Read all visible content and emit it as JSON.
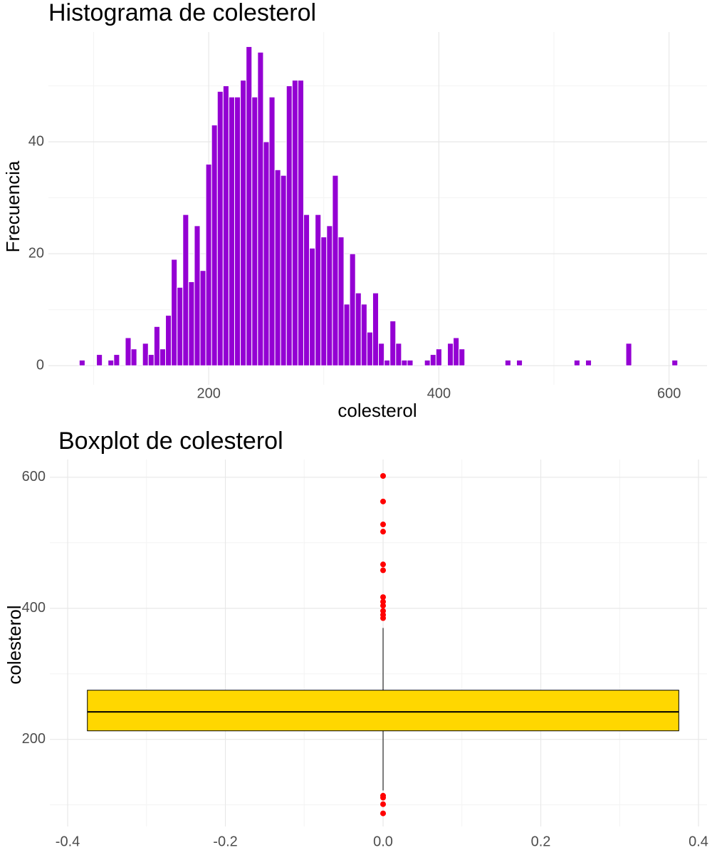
{
  "chart_data": [
    {
      "type": "histogram",
      "title": "Histograma de colesterol",
      "xlabel": "colesterol",
      "ylabel": "Frecuencia",
      "bins": [
        87.5,
        92.5,
        97.5,
        102.5,
        107.5,
        112.5,
        117.5,
        122.5,
        127.5,
        132.5,
        137.5,
        142.5,
        147.5,
        152.5,
        157.5,
        162.5,
        167.5,
        172.5,
        177.5,
        182.5,
        187.5,
        192.5,
        197.5,
        202.5,
        207.5,
        212.5,
        217.5,
        222.5,
        227.5,
        232.5,
        237.5,
        242.5,
        247.5,
        252.5,
        257.5,
        262.5,
        267.5,
        272.5,
        277.5,
        282.5,
        287.5,
        292.5,
        297.5,
        302.5,
        307.5,
        312.5,
        317.5,
        322.5,
        327.5,
        332.5,
        337.5,
        342.5,
        347.5,
        352.5,
        357.5,
        362.5,
        367.5,
        372.5,
        377.5,
        382.5,
        387.5,
        392.5,
        397.5,
        402.5,
        407.5,
        412.5,
        417.5,
        422.5,
        427.5,
        432.5,
        437.5,
        442.5,
        447.5,
        452.5,
        457.5,
        462.5,
        467.5,
        472.5,
        477.5,
        482.5,
        487.5,
        492.5,
        497.5,
        502.5,
        507.5,
        512.5,
        517.5,
        522.5,
        527.5,
        532.5,
        537.5,
        542.5,
        547.5,
        552.5,
        557.5,
        562.5,
        567.5,
        572.5,
        577.5,
        582.5,
        587.5,
        592.5,
        597.5,
        602.5,
        607.5
      ],
      "counts": [
        1,
        0,
        0,
        2,
        0,
        1,
        2,
        0,
        5,
        3,
        0,
        4,
        2,
        7,
        3,
        9,
        19,
        14,
        27,
        15,
        25,
        17,
        36,
        43,
        49,
        50,
        48,
        48,
        51,
        57,
        48,
        56,
        40,
        48,
        35,
        34,
        50,
        51,
        51,
        27,
        21,
        27,
        23,
        25,
        34,
        23,
        11,
        20,
        13,
        11,
        6,
        13,
        4,
        1,
        8,
        4,
        1,
        1,
        0,
        0,
        1,
        2,
        3,
        0,
        4,
        5,
        3,
        0,
        0,
        0,
        0,
        0,
        0,
        0,
        1,
        0,
        1,
        0,
        0,
        0,
        0,
        0,
        0,
        0,
        0,
        0,
        1,
        0,
        1,
        0,
        0,
        0,
        0,
        0,
        0,
        4,
        0,
        0,
        0,
        0,
        0,
        0,
        0,
        1
      ],
      "color": "#9400d3",
      "xlim": [
        60.7,
        633
      ],
      "xticks": [
        200,
        400,
        600
      ],
      "xminor": [
        100,
        300,
        500
      ],
      "ylim": [
        -3.4,
        59.6
      ],
      "yticks": [
        0,
        20,
        40
      ],
      "yminor": [
        10,
        30,
        50
      ],
      "grid": true
    },
    {
      "type": "box",
      "title": "Boxplot de colesterol",
      "ylabel": "colesterol",
      "q1": 213,
      "median": 242,
      "q3": 275,
      "whisker_low": 122,
      "whisker_high": 370,
      "outliers": [
        602,
        563,
        528,
        517,
        467,
        458,
        417,
        410,
        404,
        396,
        390,
        385,
        114,
        111,
        101,
        87
      ],
      "box_width": 0.75,
      "color": "#ffd700",
      "outlier_color": "#ff0000",
      "xlim": [
        -0.4226,
        0.4108
      ],
      "xticks": [
        -0.4,
        -0.2,
        {
          "value": 0,
          "label": "0.0"
        },
        0.2,
        0.4
      ],
      "xminor": [
        -0.3,
        -0.1,
        0.1,
        0.3
      ],
      "ylim": [
        67,
        627
      ],
      "yticks": [
        200,
        400,
        600
      ],
      "yminor": [
        100,
        300,
        500
      ],
      "grid": true
    }
  ]
}
